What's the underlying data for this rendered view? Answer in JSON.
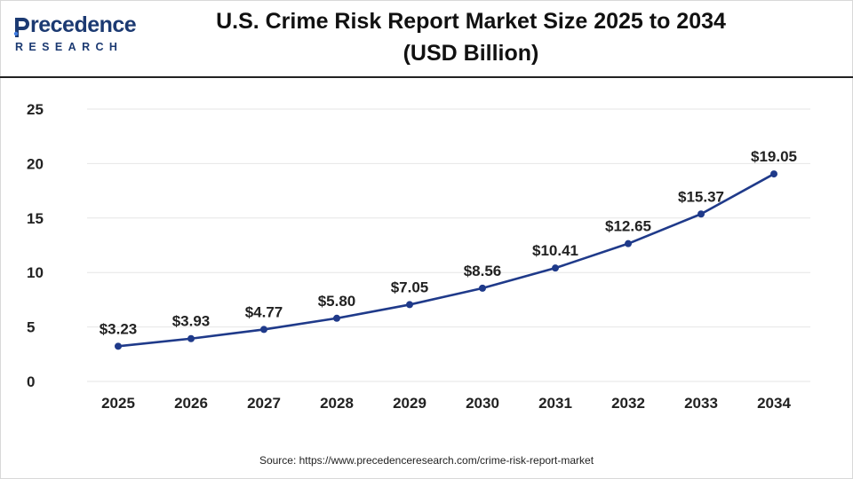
{
  "logo": {
    "brand": "recedence",
    "brand_initial": "P",
    "sub": "RESEARCH"
  },
  "header": {
    "title_line1": "U.S. Crime Risk Report Market Size 2025 to 2034",
    "title_line2": "(USD Billion)"
  },
  "source": "Source: https://www.precedenceresearch.com/crime-risk-report-market",
  "colors": {
    "line": "#1f3a8a",
    "grid": "#e6e6e6",
    "axis_text": "#222222",
    "logo": "#1c3a72"
  },
  "chart_data": {
    "type": "line",
    "title": "U.S. Crime Risk Report Market Size 2025 to 2034 (USD Billion)",
    "x": [
      "2025",
      "2026",
      "2027",
      "2028",
      "2029",
      "2030",
      "2031",
      "2032",
      "2033",
      "2034"
    ],
    "series": [
      {
        "values": [
          3.23,
          3.93,
          4.77,
          5.8,
          7.05,
          8.56,
          10.41,
          12.65,
          15.37,
          19.05
        ],
        "labels": [
          "$3.23",
          "$3.93",
          "$4.77",
          "$5.80",
          "$7.05",
          "$8.56",
          "$10.41",
          "$12.65",
          "$15.37",
          "$19.05"
        ]
      }
    ],
    "yticks": [
      "0",
      "5",
      "10",
      "15",
      "20",
      "25"
    ],
    "ylim": [
      0,
      25
    ],
    "xlabel": "",
    "ylabel": "",
    "grid": true,
    "legend": "none"
  }
}
